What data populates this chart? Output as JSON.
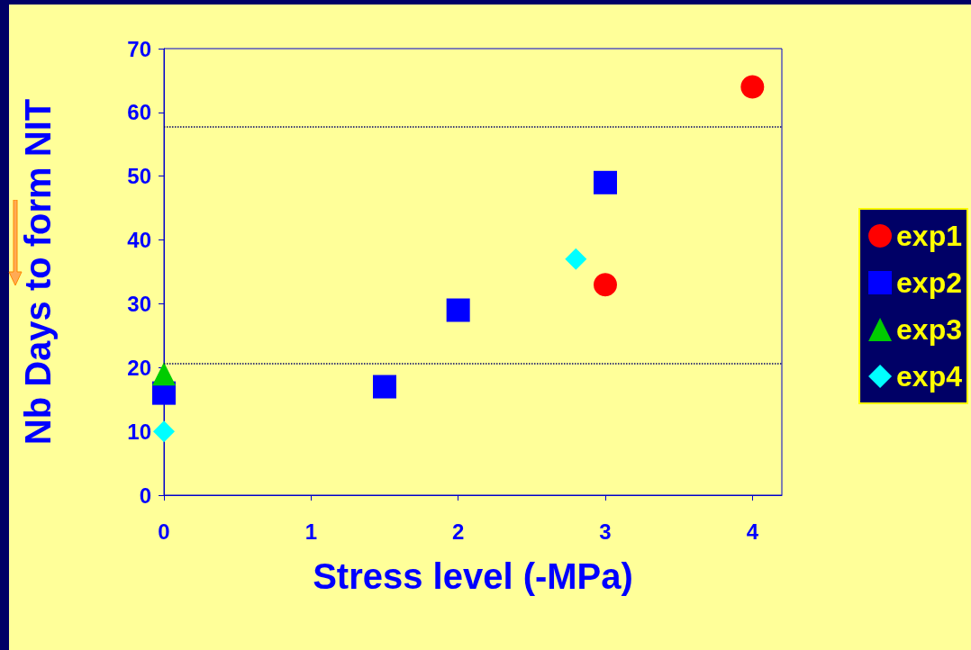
{
  "chart_data": {
    "type": "scatter",
    "xlabel": "Stress level (-MPa)",
    "ylabel": "Nb Days to form NIT",
    "xlim": [
      0,
      4.2
    ],
    "xticks": [
      0,
      1,
      2,
      3,
      4
    ],
    "ylim": [
      0,
      70
    ],
    "yticks": [
      0,
      10,
      20,
      30,
      40,
      50,
      60,
      70
    ],
    "grid": false,
    "legend": "right",
    "series": [
      {
        "name": "exp1",
        "color": "#ff0000",
        "marker": "circle",
        "x": [
          3,
          4
        ],
        "values": [
          33,
          64
        ]
      },
      {
        "name": "exp2",
        "color": "#0000ff",
        "marker": "square",
        "x": [
          0,
          1.5,
          2,
          3
        ],
        "values": [
          16,
          17,
          29,
          49
        ]
      },
      {
        "name": "exp3",
        "color": "#00cc00",
        "marker": "triangle",
        "x": [
          0
        ],
        "values": [
          19
        ]
      },
      {
        "name": "exp4",
        "color": "#00ffff",
        "marker": "diamond",
        "x": [
          0,
          2.8
        ],
        "values": [
          10,
          37
        ]
      }
    ],
    "ref_lines": [
      {
        "axis": "y",
        "value": 20.6,
        "color": "#000066",
        "line_style": "dotted"
      },
      {
        "axis": "y",
        "value": 57.7,
        "color": "#000066",
        "line_style": "dotted"
      }
    ]
  }
}
